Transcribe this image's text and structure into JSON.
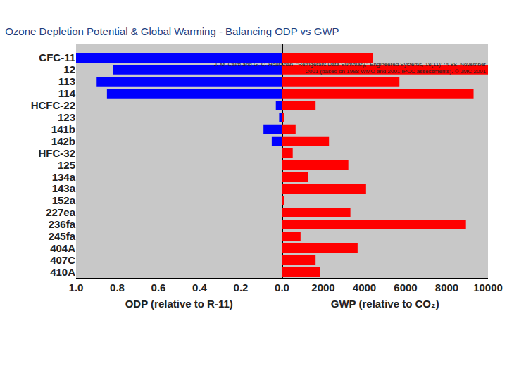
{
  "chart_data": [
    {
      "type": "bar",
      "orientation": "horizontal",
      "title": "Ozone Depletion Potential & Global Warming - Balancing ODP vs GWP",
      "annotations": [
        "J. M. Calm and G. C. Hourahan, \"Refrigerant Data Summary,\" Engineered Systems, 18(11):74-88, November",
        "2001 (based on 1998 WMO and 2001 IPCC assessments). © JMC 2001"
      ],
      "categories": [
        "CFC-11",
        "12",
        "113",
        "114",
        "HCFC-22",
        "123",
        "141b",
        "142b",
        "HFC-32",
        "125",
        "134a",
        "143a",
        "152a",
        "227ea",
        "236fa",
        "245fa",
        "404A",
        "407C",
        "410A"
      ],
      "values": [
        1.0,
        0.82,
        0.9,
        0.85,
        0.03,
        0.014,
        0.09,
        0.05,
        0,
        0,
        0,
        0,
        0,
        0,
        0,
        0,
        0,
        0,
        0
      ],
      "color": "#0000ff",
      "xlabel": "ODP (relative to R-11)",
      "xlim": [
        1.0,
        0
      ],
      "xticks": [
        {
          "value": 1,
          "label": "1.0"
        },
        0.8,
        0.6,
        0.4,
        0.2,
        {
          "value": 0,
          "label": "0.0"
        }
      ],
      "grid": false
    },
    {
      "type": "bar",
      "orientation": "horizontal",
      "categories": [
        "CFC-11",
        "12",
        "113",
        "114",
        "HCFC-22",
        "123",
        "141b",
        "142b",
        "HFC-32",
        "125",
        "134a",
        "143a",
        "152a",
        "227ea",
        "236fa",
        "245fa",
        "404A",
        "407C",
        "410A"
      ],
      "values": [
        4400,
        10000,
        5700,
        9300,
        1630,
        100,
        660,
        2280,
        520,
        3220,
        1250,
        4080,
        100,
        3320,
        8930,
        900,
        3670,
        1630,
        1830
      ],
      "color": "#ff0000",
      "xlabel": "GWP (relative to CO₂)",
      "xlim": [
        0,
        10000
      ],
      "xticks": [
        2000,
        4000,
        6000,
        8000,
        10000
      ],
      "tick_labels": "x",
      "grid": false
    }
  ]
}
